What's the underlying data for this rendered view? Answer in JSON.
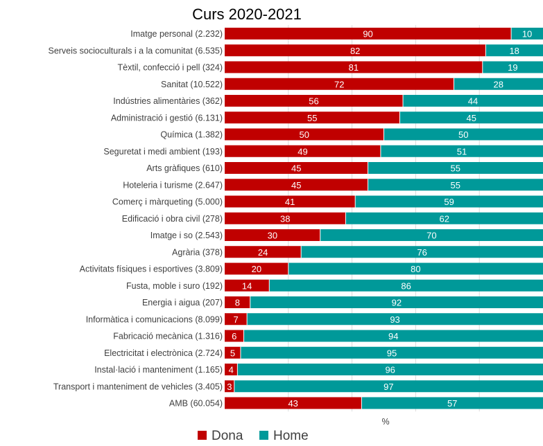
{
  "chart_data": {
    "type": "bar",
    "orientation": "horizontal",
    "stacked": true,
    "title": "Curs 2020-2021",
    "xlabel": "%",
    "ylabel": "",
    "xlim": [
      0,
      100
    ],
    "grid": true,
    "legend_position": "bottom",
    "categories": [
      "Imatge personal  (2.232)",
      "Serveis socioculturals i a la comunitat  (6.535)",
      "Tèxtil, confecció i pell  (324)",
      "Sanitat  (10.522)",
      "Indústries alimentàries  (362)",
      "Administració i gestió  (6.131)",
      "Química  (1.382)",
      "Seguretat i medi ambient  (193)",
      "Arts gràfiques  (610)",
      "Hoteleria i turisme  (2.647)",
      "Comerç i màrqueting  (5.000)",
      "Edificació i obra civil  (278)",
      "Imatge i so  (2.543)",
      "Agrària  (378)",
      "Activitats físiques i esportives (3.809)",
      "Fusta, moble i suro  (192)",
      "Energia i aigua  (207)",
      "Informàtica i comunicacions  (8.099)",
      "Fabricació mecànica  (1.316)",
      "Electricitat i electrònica  (2.724)",
      "Instal·lació i manteniment  (1.165)",
      "Transport i manteniment de vehicles  (3.405)",
      "AMB (60.054)"
    ],
    "series": [
      {
        "name": "Dona",
        "color": "#C00000",
        "values": [
          90,
          82,
          81,
          72,
          56,
          55,
          50,
          49,
          45,
          45,
          41,
          38,
          30,
          24,
          20,
          14,
          8,
          7,
          6,
          5,
          4,
          3,
          43
        ]
      },
      {
        "name": "Home",
        "color": "#009999",
        "values": [
          10,
          18,
          19,
          28,
          44,
          45,
          50,
          51,
          55,
          55,
          59,
          62,
          70,
          76,
          80,
          86,
          92,
          93,
          94,
          95,
          96,
          97,
          57
        ]
      }
    ]
  }
}
